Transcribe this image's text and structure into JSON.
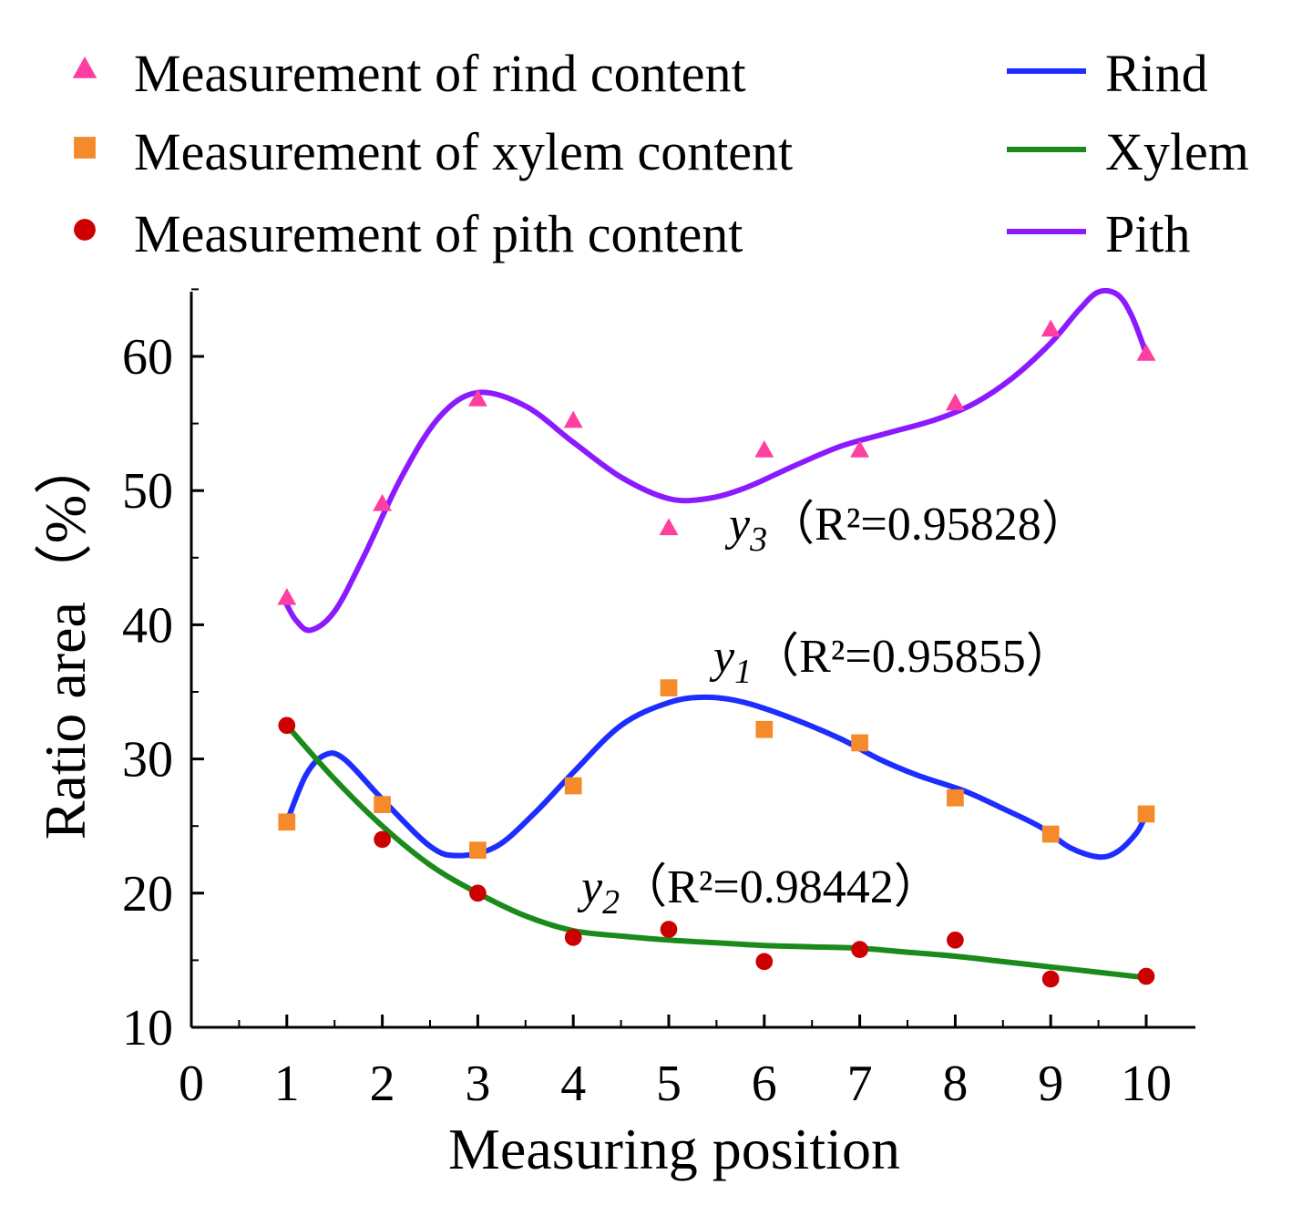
{
  "chart_data": {
    "type": "scatter",
    "title": "",
    "xlabel": "Measuring position",
    "ylabel": "Ratio area（%）",
    "xlim": [
      0,
      10.5
    ],
    "ylim": [
      10,
      65
    ],
    "xticks": [
      "0",
      "1",
      "2",
      "3",
      "4",
      "5",
      "6",
      "7",
      "8",
      "9",
      "10"
    ],
    "yticks": [
      "10",
      "20",
      "30",
      "40",
      "50",
      "60"
    ],
    "legend": {
      "placement": "top",
      "markers": [
        {
          "label": "Measurement of rind content",
          "marker": "triangle",
          "color": "#ff3fa0"
        },
        {
          "label": "Measurement of xylem content",
          "marker": "square",
          "color": "#f58a2a"
        },
        {
          "label": "Measurement of pith content",
          "marker": "circle",
          "color": "#cc0000"
        }
      ],
      "lines": [
        {
          "label": "Rind",
          "color": "#1e2dff"
        },
        {
          "label": "Xylem",
          "color": "#1a8a1a"
        },
        {
          "label": "Pith",
          "color": "#8c1aff"
        }
      ]
    },
    "series": [
      {
        "name": "Measurement of rind content",
        "kind": "scatter",
        "marker": "triangle",
        "color": "#ff3fa0",
        "x": [
          1,
          2,
          3,
          4,
          5,
          6,
          7,
          8,
          9,
          10
        ],
        "y": [
          42,
          49,
          56.8,
          55.2,
          47.2,
          53,
          53,
          56.5,
          62,
          60.2
        ]
      },
      {
        "name": "Measurement of xylem content",
        "kind": "scatter",
        "marker": "square",
        "color": "#f58a2a",
        "x": [
          1,
          2,
          3,
          4,
          5,
          6,
          7,
          8,
          9,
          10
        ],
        "y": [
          25.3,
          26.6,
          23.2,
          28,
          35.3,
          32.2,
          31.2,
          27.1,
          24.4,
          25.9
        ]
      },
      {
        "name": "Measurement of pith content",
        "kind": "scatter",
        "marker": "circle",
        "color": "#cc0000",
        "x": [
          1,
          2,
          3,
          4,
          5,
          6,
          7,
          8,
          9,
          10
        ],
        "y": [
          32.5,
          24,
          20,
          16.7,
          17.3,
          14.9,
          15.8,
          16.5,
          13.6,
          13.8
        ]
      },
      {
        "name": "Rind",
        "kind": "line",
        "color": "#1e2dff",
        "x": [
          1,
          1.2,
          1.4,
          1.6,
          2,
          2.5,
          2.8,
          3.2,
          3.6,
          4,
          4.5,
          5,
          5.4,
          5.8,
          6.3,
          6.8,
          7.2,
          7.6,
          8.1,
          8.5,
          8.9,
          9.2,
          9.5,
          9.7,
          9.9,
          10
        ],
        "y": [
          25.3,
          28.8,
          30.3,
          30,
          27,
          23.5,
          22.8,
          23.5,
          26,
          29,
          32.5,
          34.2,
          34.6,
          34.2,
          33,
          31.5,
          30,
          28.8,
          27.6,
          26.3,
          24.9,
          23.4,
          22.7,
          23.1,
          24.5,
          25.9
        ]
      },
      {
        "name": "Xylem",
        "kind": "line",
        "color": "#1a8a1a",
        "x": [
          1,
          1.5,
          2,
          2.5,
          3,
          3.5,
          4,
          4.5,
          5,
          5.5,
          6,
          6.5,
          7,
          7.5,
          8,
          8.5,
          9,
          9.5,
          10
        ],
        "y": [
          32.5,
          28.5,
          25,
          22.1,
          20,
          18.3,
          17.2,
          16.8,
          16.5,
          16.3,
          16.1,
          16,
          15.9,
          15.6,
          15.3,
          14.9,
          14.5,
          14.1,
          13.7
        ]
      },
      {
        "name": "Pith",
        "kind": "line",
        "color": "#8c1aff",
        "x": [
          1,
          1.1,
          1.25,
          1.5,
          1.8,
          2.2,
          2.6,
          3,
          3.5,
          4,
          4.5,
          5,
          5.4,
          5.8,
          6.3,
          6.8,
          7.3,
          7.8,
          8.2,
          8.6,
          9,
          9.3,
          9.5,
          9.7,
          9.85,
          10
        ],
        "y": [
          41.5,
          40.3,
          39.6,
          41,
          45,
          51,
          55.5,
          57.3,
          56.3,
          53.6,
          51,
          49.4,
          49.4,
          50.2,
          51.8,
          53.3,
          54.3,
          55.3,
          56.5,
          58.4,
          61,
          63.5,
          64.8,
          64.6,
          63,
          60.2
        ]
      }
    ],
    "annotations": [
      {
        "var": "y",
        "sub": "3",
        "text": "（R²=0.95828）",
        "near_series": "Pith"
      },
      {
        "var": "y",
        "sub": "1",
        "text": "（R²=0.95855）",
        "near_series": "Rind"
      },
      {
        "var": "y",
        "sub": "2",
        "text": "（R²=0.98442）",
        "near_series": "Xylem"
      }
    ]
  }
}
